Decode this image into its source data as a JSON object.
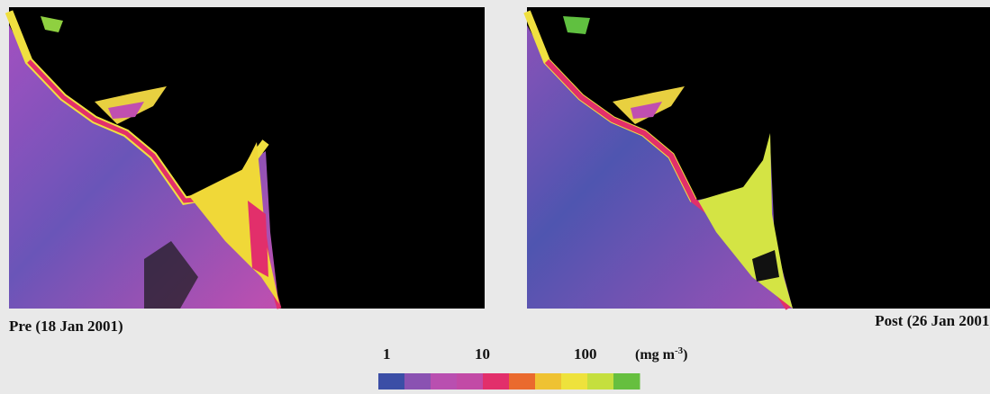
{
  "panels": [
    {
      "caption": "Pre (18 Jan 2001)"
    },
    {
      "caption": "Post (26 Jan 2001)"
    }
  ],
  "colorbar": {
    "ticks": [
      "1",
      "10",
      "100"
    ],
    "unit": {
      "text": "(mg m",
      "superscript": "-3",
      "close": ")"
    },
    "colors": [
      "#3b4ea6",
      "#8a52b2",
      "#b94fb0",
      "#c24aa6",
      "#e22f6b",
      "#ea6a2e",
      "#efc232",
      "#eee23c",
      "#c5df3e",
      "#66bf3f"
    ]
  }
}
